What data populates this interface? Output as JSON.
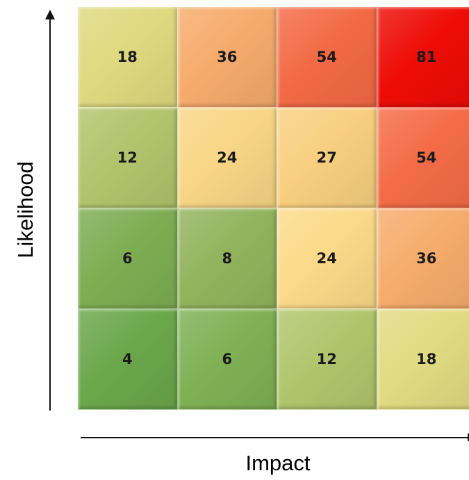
{
  "chart_data": {
    "type": "heatmap",
    "title": "",
    "xlabel": "Impact",
    "ylabel": "Likelihood",
    "rows": [
      {
        "cells": [
          {
            "value": "18",
            "color": "#dfd97f"
          },
          {
            "value": "36",
            "color": "#f6ab6c"
          },
          {
            "value": "54",
            "color": "#f36a45"
          },
          {
            "value": "81",
            "color": "#ee0c06"
          }
        ]
      },
      {
        "cells": [
          {
            "value": "12",
            "color": "#b2c46c"
          },
          {
            "value": "24",
            "color": "#f8d686"
          },
          {
            "value": "27",
            "color": "#f8cf7f"
          },
          {
            "value": "54",
            "color": "#f46c47"
          }
        ]
      },
      {
        "cells": [
          {
            "value": "6",
            "color": "#7ead53"
          },
          {
            "value": "8",
            "color": "#92b45d"
          },
          {
            "value": "24",
            "color": "#fbda89"
          },
          {
            "value": "36",
            "color": "#f6ac6c"
          }
        ]
      },
      {
        "cells": [
          {
            "value": "4",
            "color": "#6ba74b"
          },
          {
            "value": "6",
            "color": "#7fb155"
          },
          {
            "value": "12",
            "color": "#b1c56d"
          },
          {
            "value": "18",
            "color": "#e1db82"
          }
        ]
      }
    ]
  }
}
